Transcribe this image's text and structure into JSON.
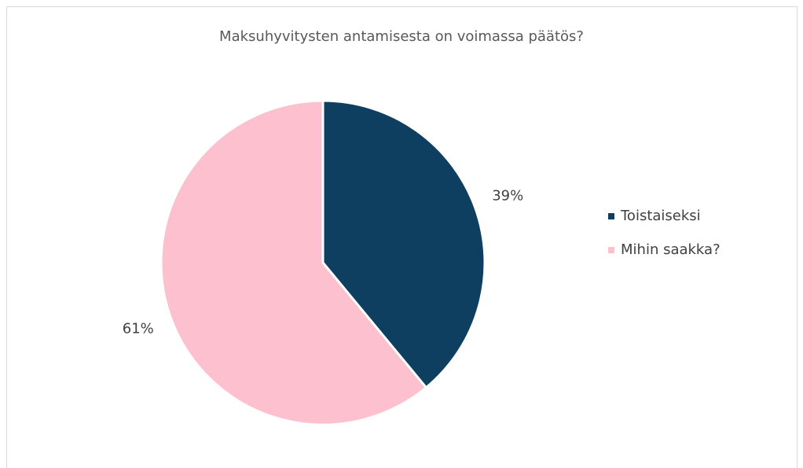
{
  "chart_data": {
    "type": "pie",
    "title": "Maksuhyvitysten antamisesta on voimassa päätös?",
    "categories": [
      "Toistaiseksi",
      "Mihin saakka?"
    ],
    "values": [
      39,
      61
    ],
    "value_labels": [
      "39%",
      "61%"
    ],
    "colors": [
      "#0f3f60",
      "#fcc0cf"
    ],
    "legend": "right"
  }
}
